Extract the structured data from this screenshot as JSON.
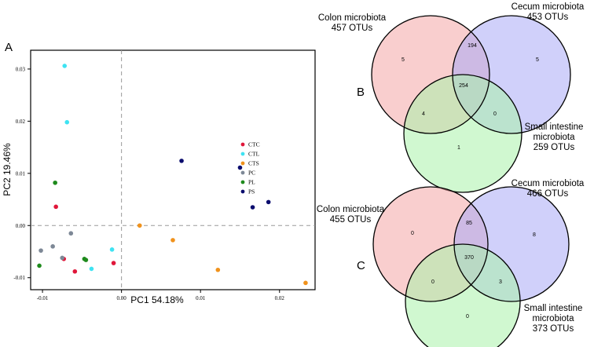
{
  "panel_labels": {
    "a": "A",
    "b": "B",
    "c": "C"
  },
  "chart_data": [
    {
      "type": "scatter",
      "title": "",
      "xlabel": "PC1 54.18%",
      "ylabel": "PC2 19.46%",
      "xlim": [
        -0.0115,
        0.0245
      ],
      "ylim": [
        -0.0123,
        0.0336
      ],
      "grid": false,
      "reference_lines": {
        "x": 0,
        "y": 0
      },
      "x_ticks": [
        {
          "v": -0.01,
          "label": "-0.01"
        },
        {
          "v": 0,
          "label": "0.00"
        },
        {
          "v": 0.01,
          "label": "0.01"
        },
        {
          "v": 0.02,
          "label": "0.02"
        }
      ],
      "y_ticks": [
        {
          "v": 0.03,
          "label": "0.03"
        },
        {
          "v": 0.02,
          "label": "0.02"
        },
        {
          "v": 0.01,
          "label": "0.01"
        },
        {
          "v": 0,
          "label": "0.00"
        },
        {
          "v": -0.01,
          "label": "-0.01"
        }
      ],
      "legend_position": "right",
      "series": [
        {
          "name": "CTC",
          "color": "#e0173a",
          "points": [
            [
              -0.0083,
              0.0036
            ],
            [
              -0.0073,
              -0.0064
            ],
            [
              -0.0059,
              -0.0088
            ],
            [
              -0.001,
              -0.0072
            ]
          ]
        },
        {
          "name": "CTL",
          "color": "#3fe3f2",
          "points": [
            [
              -0.0072,
              0.0306
            ],
            [
              -0.0069,
              0.0198
            ],
            [
              -0.0012,
              -0.0046
            ],
            [
              -0.0038,
              -0.0083
            ]
          ]
        },
        {
          "name": "CTS",
          "color": "#f0921c",
          "points": [
            [
              0.0023,
              0.0
            ],
            [
              0.0065,
              -0.0028
            ],
            [
              0.0122,
              -0.0085
            ],
            [
              0.0233,
              -0.011
            ]
          ]
        },
        {
          "name": "PC",
          "color": "#7d8896",
          "points": [
            [
              -0.0064,
              -0.0015
            ],
            [
              -0.0087,
              -0.004
            ],
            [
              -0.0102,
              -0.0048
            ],
            [
              -0.0075,
              -0.0062
            ]
          ]
        },
        {
          "name": "PL",
          "color": "#1e8a1c",
          "points": [
            [
              -0.0084,
              0.0082
            ],
            [
              -0.0104,
              -0.0077
            ],
            [
              -0.0047,
              -0.0064
            ],
            [
              -0.0045,
              -0.0066
            ]
          ]
        },
        {
          "name": "PS",
          "color": "#0b0d6e",
          "points": [
            [
              0.0076,
              0.0124
            ],
            [
              0.015,
              0.0111
            ],
            [
              0.0166,
              0.0035
            ],
            [
              0.0186,
              0.0045
            ]
          ]
        }
      ]
    },
    {
      "type": "venn",
      "panel": "B",
      "sets": [
        {
          "name": "Colon microbiota",
          "size": "457 OTUs",
          "color": "#f4a5a6"
        },
        {
          "name": "Cecum microbiota",
          "size": "453 OTUs",
          "color": "#a9a9f5"
        },
        {
          "name": "Small intestine\nmicrobiota",
          "size": "259 OTUs",
          "color": "#a9f2a9"
        }
      ],
      "regions": {
        "only_colon": 5,
        "only_cecum": 5,
        "only_small": 1,
        "colon_cecum": 194,
        "colon_small": 4,
        "cecum_small": 0,
        "all": 254
      }
    },
    {
      "type": "venn",
      "panel": "C",
      "sets": [
        {
          "name": "Colon microbiota",
          "size": "455 OTUs",
          "color": "#f4a5a6"
        },
        {
          "name": "Cecum microbiota",
          "size": "466 OTUs",
          "color": "#a9a9f5"
        },
        {
          "name": "Small intestine\nmicrobiota",
          "size": "373 OTUs",
          "color": "#a9f2a9"
        }
      ],
      "regions": {
        "only_colon": 0,
        "only_cecum": 8,
        "only_small": 0,
        "colon_cecum": 85,
        "colon_small": 0,
        "cecum_small": 3,
        "all": 370
      }
    }
  ]
}
